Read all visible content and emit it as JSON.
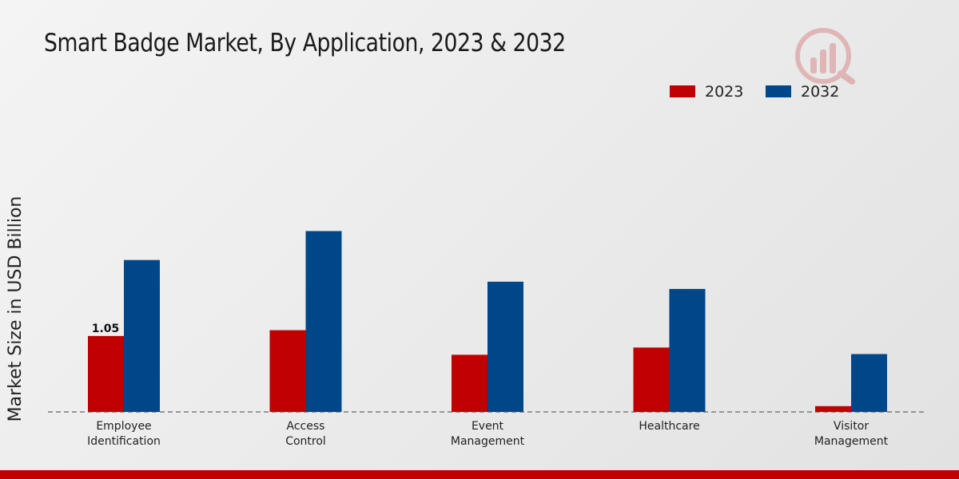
{
  "chart_data": {
    "type": "bar",
    "title": "Smart Badge Market, By Application, 2023 & 2032",
    "xlabel": "",
    "ylabel": "Market Size in USD Billion",
    "categories": [
      "Employee\nIdentification",
      "Access\nControl",
      "Event\nManagement",
      "Healthcare",
      "Visitor\nManagement"
    ],
    "series": [
      {
        "name": "2023",
        "color": "#c00000",
        "values": [
          1.05,
          1.13,
          0.79,
          0.89,
          0.08
        ]
      },
      {
        "name": "2032",
        "color": "#00478a",
        "values": [
          2.1,
          2.5,
          1.8,
          1.7,
          0.8
        ]
      }
    ],
    "data_labels": [
      {
        "series": 0,
        "index": 0,
        "text": "1.05"
      }
    ],
    "ylim": [
      0,
      3.2
    ],
    "grid": false,
    "legend": "top-right"
  },
  "colors": {
    "bottom_bar": "#c00000",
    "watermark": "#c00000"
  }
}
